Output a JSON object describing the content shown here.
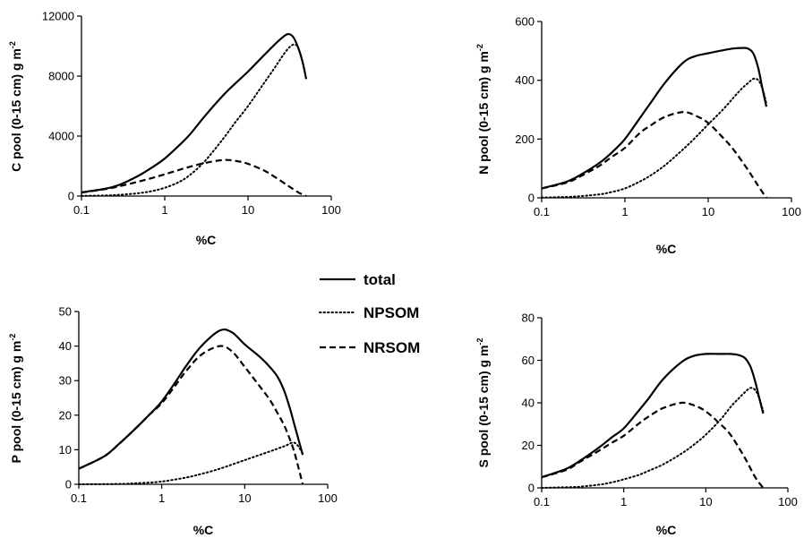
{
  "legend": {
    "items": [
      {
        "label": "total",
        "style": "solid"
      },
      {
        "label": "NPSOM",
        "style": "dotted"
      },
      {
        "label": "NRSOM",
        "style": "dashed"
      }
    ]
  },
  "chart_data": [
    {
      "type": "line",
      "xlabel": "%C",
      "ylabel": "C pool (0-15 cm) g m",
      "ylabel_sup": "-2",
      "x_scale": "log",
      "xlim": [
        0.1,
        100
      ],
      "x_ticks": [
        0.1,
        1,
        10,
        100
      ],
      "x_tick_labels": [
        "0.1",
        "1",
        "10",
        "100"
      ],
      "ylim": [
        0,
        12000
      ],
      "y_ticks": [
        0,
        4000,
        8000,
        12000
      ],
      "y_tick_labels": [
        "0",
        "4000",
        "8000",
        "12000"
      ],
      "grid": false,
      "series": [
        {
          "name": "total",
          "style": "solid",
          "x": [
            0.1,
            0.2,
            0.3,
            0.5,
            0.7,
            1,
            1.5,
            2,
            3,
            5,
            7,
            10,
            15,
            20,
            25,
            30,
            35,
            40,
            45,
            50
          ],
          "y": [
            250,
            500,
            800,
            1400,
            1900,
            2500,
            3400,
            4100,
            5300,
            6700,
            7500,
            8300,
            9300,
            10000,
            10500,
            10800,
            10600,
            9900,
            9000,
            7800
          ]
        },
        {
          "name": "NPSOM",
          "style": "dotted",
          "x": [
            0.1,
            0.2,
            0.3,
            0.5,
            0.7,
            1,
            1.5,
            2,
            3,
            5,
            7,
            10,
            15,
            20,
            25,
            30,
            35,
            40
          ],
          "y": [
            10,
            40,
            90,
            200,
            330,
            550,
            950,
            1400,
            2300,
            3800,
            4900,
            6000,
            7400,
            8400,
            9200,
            9800,
            10100,
            10000
          ]
        },
        {
          "name": "NRSOM",
          "style": "dashed",
          "x": [
            0.1,
            0.2,
            0.3,
            0.5,
            0.7,
            1,
            1.5,
            2,
            3,
            5,
            7,
            10,
            15,
            20,
            30,
            40,
            50
          ],
          "y": [
            230,
            480,
            680,
            980,
            1200,
            1450,
            1750,
            1950,
            2200,
            2400,
            2350,
            2150,
            1750,
            1350,
            700,
            250,
            0
          ]
        }
      ]
    },
    {
      "type": "line",
      "xlabel": "%C",
      "ylabel": "N pool (0-15 cm) g m",
      "ylabel_sup": "-2",
      "x_scale": "log",
      "xlim": [
        0.1,
        100
      ],
      "x_ticks": [
        0.1,
        1,
        10,
        100
      ],
      "x_tick_labels": [
        "0.1",
        "1",
        "10",
        "100"
      ],
      "ylim": [
        0,
        600
      ],
      "y_ticks": [
        0,
        200,
        400,
        600
      ],
      "y_tick_labels": [
        "0",
        "200",
        "400",
        "600"
      ],
      "grid": false,
      "series": [
        {
          "name": "total",
          "style": "solid",
          "x": [
            0.1,
            0.2,
            0.3,
            0.5,
            0.7,
            1,
            1.5,
            2,
            3,
            5,
            7,
            10,
            15,
            20,
            25,
            30,
            35,
            40,
            45,
            50
          ],
          "y": [
            32,
            55,
            80,
            120,
            155,
            200,
            270,
            320,
            390,
            460,
            482,
            492,
            502,
            508,
            510,
            508,
            490,
            440,
            370,
            310
          ]
        },
        {
          "name": "NPSOM",
          "style": "dotted",
          "x": [
            0.1,
            0.2,
            0.3,
            0.5,
            0.7,
            1,
            1.5,
            2,
            3,
            5,
            7,
            10,
            15,
            20,
            25,
            30,
            35,
            40,
            45,
            50
          ],
          "y": [
            1,
            3,
            6,
            12,
            20,
            32,
            55,
            75,
            110,
            165,
            205,
            250,
            300,
            340,
            370,
            390,
            405,
            400,
            370,
            320
          ]
        },
        {
          "name": "NRSOM",
          "style": "dashed",
          "x": [
            0.1,
            0.2,
            0.3,
            0.5,
            0.7,
            1,
            1.5,
            2,
            3,
            5,
            7,
            10,
            15,
            20,
            30,
            40,
            50
          ],
          "y": [
            32,
            52,
            75,
            110,
            140,
            170,
            220,
            245,
            275,
            292,
            280,
            255,
            205,
            165,
            95,
            40,
            0
          ]
        }
      ]
    },
    {
      "type": "line",
      "xlabel": "%C",
      "ylabel": "P pool (0-15 cm) g m",
      "ylabel_sup": "-2",
      "x_scale": "log",
      "xlim": [
        0.1,
        100
      ],
      "x_ticks": [
        0.1,
        1,
        10,
        100
      ],
      "x_tick_labels": [
        "0.1",
        "1",
        "10",
        "100"
      ],
      "ylim": [
        0,
        50
      ],
      "y_ticks": [
        0,
        10,
        20,
        30,
        40,
        50
      ],
      "y_tick_labels": [
        "0",
        "10",
        "20",
        "30",
        "40",
        "50"
      ],
      "grid": false,
      "series": [
        {
          "name": "total",
          "style": "solid",
          "x": [
            0.1,
            0.2,
            0.3,
            0.5,
            0.7,
            1,
            1.5,
            2,
            3,
            5,
            7,
            10,
            15,
            20,
            25,
            30,
            35,
            40,
            45,
            50
          ],
          "y": [
            4.5,
            8,
            11.5,
            16.5,
            20,
            24,
            30,
            34.5,
            40,
            44.5,
            44,
            40.5,
            37,
            34,
            31,
            27,
            22,
            17,
            12.5,
            8.5
          ]
        },
        {
          "name": "NPSOM",
          "style": "dotted",
          "x": [
            0.1,
            0.3,
            0.5,
            1,
            2,
            3,
            5,
            10,
            20,
            30,
            40,
            50
          ],
          "y": [
            0,
            0.1,
            0.3,
            0.8,
            2,
            3,
            4.5,
            7,
            9.5,
            11,
            12,
            9
          ]
        },
        {
          "name": "NRSOM",
          "style": "dashed",
          "x": [
            0.1,
            0.2,
            0.3,
            0.5,
            0.7,
            1,
            1.5,
            2,
            3,
            5,
            7,
            10,
            15,
            20,
            25,
            30,
            35,
            40,
            50
          ],
          "y": [
            4.5,
            8,
            11.5,
            16.5,
            20,
            23.5,
            29,
            33,
            37.5,
            40,
            38.5,
            34,
            28.5,
            24.5,
            20.5,
            17,
            13,
            9,
            0
          ]
        }
      ]
    },
    {
      "type": "line",
      "xlabel": "%C",
      "ylabel": "S pool (0-15 cm) g m",
      "ylabel_sup": "-2",
      "x_scale": "log",
      "xlim": [
        0.1,
        100
      ],
      "x_ticks": [
        0.1,
        1,
        10,
        100
      ],
      "x_tick_labels": [
        "0.1",
        "1",
        "10",
        "100"
      ],
      "ylim": [
        0,
        80
      ],
      "y_ticks": [
        0,
        20,
        40,
        60,
        80
      ],
      "y_tick_labels": [
        "0",
        "20",
        "40",
        "60",
        "80"
      ],
      "grid": false,
      "series": [
        {
          "name": "total",
          "style": "solid",
          "x": [
            0.1,
            0.2,
            0.3,
            0.5,
            0.7,
            1,
            1.5,
            2,
            3,
            5,
            7,
            10,
            15,
            20,
            25,
            30,
            35,
            40,
            45,
            50
          ],
          "y": [
            5,
            9,
            13,
            19,
            23.5,
            28,
            36,
            42,
            51,
            59,
            62,
            63,
            63,
            63,
            62.5,
            61,
            57,
            50,
            42,
            35
          ]
        },
        {
          "name": "NPSOM",
          "style": "dotted",
          "x": [
            0.1,
            0.2,
            0.3,
            0.5,
            0.7,
            1,
            1.5,
            2,
            3,
            5,
            7,
            10,
            15,
            20,
            25,
            30,
            35,
            40,
            45,
            50
          ],
          "y": [
            0,
            0.3,
            0.6,
            1.5,
            2.5,
            4,
            6,
            8,
            11,
            16,
            20,
            25,
            32,
            38,
            42,
            45,
            47,
            46,
            42,
            36
          ]
        },
        {
          "name": "NRSOM",
          "style": "dashed",
          "x": [
            0.1,
            0.2,
            0.3,
            0.5,
            0.7,
            1,
            1.5,
            2,
            3,
            5,
            7,
            10,
            15,
            20,
            30,
            40,
            50
          ],
          "y": [
            5,
            8.5,
            12.5,
            17.5,
            21,
            24.5,
            30,
            33.5,
            37.5,
            40,
            39,
            36,
            30,
            25,
            14,
            5,
            0
          ]
        }
      ]
    }
  ]
}
